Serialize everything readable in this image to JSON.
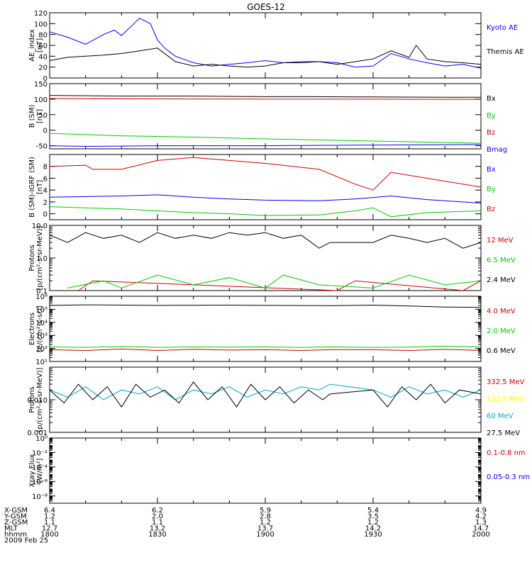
{
  "title": "GOES-12",
  "footer": {
    "rows": [
      {
        "label": "X-GSM",
        "values": [
          "6.4",
          "6.2",
          "5.9",
          "5.4",
          "4.9"
        ]
      },
      {
        "label": "Y-GSM",
        "values": [
          "1.2",
          "2.0",
          "2.8",
          "3.5",
          "4.2"
        ]
      },
      {
        "label": "Z-GSM",
        "values": [
          "1.1",
          "1.1",
          "1.2",
          "1.2",
          "1.3"
        ]
      },
      {
        "label": "MLT",
        "values": [
          "12.7",
          "13.2",
          "13.7",
          "14.2",
          "14.7"
        ]
      },
      {
        "label": "hhmm",
        "values": [
          "1800",
          "1830",
          "1900",
          "1930",
          "2000"
        ]
      }
    ],
    "date": "2009 Feb 25"
  },
  "colors": {
    "black": "#000000",
    "blue": "#0000ff",
    "red": "#cc0000",
    "green": "#00cc00",
    "yellow": "#ffff00",
    "cyan": "#00aacc"
  },
  "chart_data": [
    {
      "type": "line",
      "ylabel": [
        "AE_index",
        "[nT]"
      ],
      "ylim": [
        0,
        120
      ],
      "yticks": [
        "0",
        "20",
        "40",
        "60",
        "80",
        "100",
        "120"
      ],
      "series": [
        {
          "name": "Kyoto AE",
          "color": "#0000ff",
          "x": [
            1800,
            1805,
            1810,
            1815,
            1818,
            1820,
            1825,
            1828,
            1830,
            1832,
            1835,
            1840,
            1845,
            1850,
            1855,
            1900,
            1905,
            1910,
            1915,
            1920,
            1925,
            1930,
            1935,
            1940,
            1945,
            1950,
            1955,
            2000
          ],
          "y": [
            85,
            75,
            62,
            80,
            88,
            78,
            110,
            100,
            70,
            55,
            40,
            28,
            22,
            25,
            28,
            32,
            28,
            30,
            30,
            28,
            20,
            22,
            45,
            35,
            28,
            22,
            25,
            18
          ]
        },
        {
          "name": "Themis AE",
          "color": "#000000",
          "x": [
            1800,
            1805,
            1810,
            1815,
            1820,
            1825,
            1830,
            1835,
            1840,
            1845,
            1850,
            1855,
            1900,
            1905,
            1910,
            1915,
            1920,
            1925,
            1930,
            1935,
            1940,
            1942,
            1945,
            1950,
            1955,
            2000
          ],
          "y": [
            32,
            38,
            40,
            42,
            45,
            50,
            55,
            30,
            22,
            25,
            22,
            20,
            22,
            28,
            28,
            30,
            25,
            30,
            35,
            50,
            38,
            60,
            35,
            30,
            28,
            25
          ]
        }
      ]
    },
    {
      "type": "line",
      "ylabel": [
        "B (SM)",
        "[nT]"
      ],
      "ylim": [
        -60,
        150
      ],
      "yticks": [
        "-50",
        "0",
        "50",
        "100",
        "150"
      ],
      "series": [
        {
          "name": "Bx",
          "color": "#000000",
          "x": [
            1800,
            1820,
            1840,
            1850,
            1900,
            1911,
            1913,
            1930,
            1950,
            2000
          ],
          "y": [
            112,
            110,
            110,
            109,
            108,
            108,
            108,
            107,
            106,
            106
          ]
        },
        {
          "name": "By",
          "color": "#00cc00",
          "x": [
            1800,
            1820,
            1840,
            1900,
            1930,
            2000
          ],
          "y": [
            -10,
            -18,
            -22,
            -28,
            -35,
            -42
          ]
        },
        {
          "name": "Bz",
          "color": "#cc0000",
          "x": [
            1800,
            1830,
            1900,
            1930,
            2000
          ],
          "y": [
            102,
            101,
            100,
            100,
            99
          ]
        },
        {
          "name": "Bmag",
          "color": "#0000ff",
          "x": [
            1800,
            1810,
            1830,
            1900,
            1930,
            2000
          ],
          "y": [
            -50,
            -52,
            -50,
            -50,
            -48,
            -46
          ]
        }
      ]
    },
    {
      "type": "line",
      "ylabel": [
        "B (SM)-IGRF (SM)",
        "[nT]"
      ],
      "ylim": [
        -1,
        10
      ],
      "yticks": [
        "0",
        "2",
        "4",
        "6",
        "8"
      ],
      "series": [
        {
          "name": "Bx",
          "color": "#0000ff",
          "x": [
            1800,
            1810,
            1820,
            1830,
            1840,
            1850,
            1900,
            1915,
            1925,
            1935,
            1945,
            2000
          ],
          "y": [
            2.8,
            2.9,
            3.0,
            3.2,
            2.8,
            2.5,
            2.3,
            2.2,
            2.5,
            3.0,
            2.4,
            1.8
          ]
        },
        {
          "name": "By",
          "color": "#00cc00",
          "x": [
            1800,
            1810,
            1820,
            1830,
            1840,
            1850,
            1900,
            1915,
            1925,
            1930,
            1935,
            1945,
            2000
          ],
          "y": [
            1.2,
            1.0,
            0.8,
            0.5,
            0.2,
            0.0,
            -0.3,
            -0.2,
            0.5,
            1.0,
            -0.5,
            0.2,
            0.5
          ]
        },
        {
          "name": "Bz",
          "color": "#cc0000",
          "x": [
            1800,
            1810,
            1812,
            1820,
            1830,
            1840,
            1850,
            1900,
            1915,
            1925,
            1930,
            1935,
            1945,
            2000
          ],
          "y": [
            8.0,
            8.2,
            7.5,
            7.5,
            9.0,
            9.5,
            9.0,
            8.5,
            7.5,
            5.0,
            4.0,
            7.0,
            6.0,
            4.5
          ]
        }
      ]
    },
    {
      "type": "line",
      "scale": "log",
      "ylabel": [
        "Protons",
        "[p/(cm²-s-sr-MeV)]"
      ],
      "ylim": [
        0.1,
        10.0
      ],
      "yticks": [
        "0.1",
        "1.0",
        "10.0"
      ],
      "series": [
        {
          "name": "12 MeV",
          "color": "#cc0000",
          "x": [
            1808,
            1812,
            1920,
            1925,
            1955,
            2000
          ],
          "y": [
            0.1,
            0.2,
            0.1,
            0.2,
            0.1,
            0.2
          ]
        },
        {
          "name": "6.5 MeV",
          "color": "#00cc00",
          "x": [
            1805,
            1815,
            1820,
            1830,
            1840,
            1850,
            1900,
            1905,
            1915,
            1930,
            1940,
            1950,
            2000
          ],
          "y": [
            0.12,
            0.2,
            0.12,
            0.3,
            0.15,
            0.25,
            0.12,
            0.3,
            0.15,
            0.12,
            0.3,
            0.15,
            0.2
          ]
        },
        {
          "name": "2.4 MeV",
          "color": "#000000",
          "x": [
            1800,
            1805,
            1810,
            1815,
            1820,
            1825,
            1830,
            1835,
            1840,
            1845,
            1850,
            1855,
            1900,
            1905,
            1910,
            1915,
            1918,
            1930,
            1935,
            1940,
            1945,
            1950,
            1955,
            2000
          ],
          "y": [
            5,
            3,
            6,
            4,
            5,
            3,
            6,
            4,
            5,
            4,
            6,
            5,
            6,
            4,
            5,
            2,
            3,
            3,
            5,
            4,
            3,
            4,
            2,
            3
          ]
        }
      ]
    },
    {
      "type": "line",
      "scale": "log",
      "ylabel": [
        "Electrons",
        "[e/(cm²-s-sr)]"
      ],
      "ylim": [
        10,
        1000000
      ],
      "yticks": [
        "10¹",
        "10²",
        "10³",
        "10⁴",
        "10⁵",
        "10⁶"
      ],
      "series": [
        {
          "name": "4.0 MeV",
          "color": "#cc0000",
          "x": [
            1800,
            1810,
            1820,
            1830,
            1840,
            1850,
            1900,
            1910,
            1918,
            1930,
            1940,
            1950,
            2000
          ],
          "y": [
            80,
            70,
            90,
            70,
            85,
            75,
            80,
            70,
            80,
            80,
            70,
            85,
            70
          ]
        },
        {
          "name": "2.0 MeV",
          "color": "#00cc00",
          "x": [
            1800,
            1810,
            1820,
            1830,
            1840,
            1850,
            1900,
            1910,
            1918,
            1930,
            1940,
            1950,
            2000
          ],
          "y": [
            130,
            120,
            140,
            120,
            130,
            125,
            130,
            120,
            130,
            120,
            125,
            150,
            130
          ]
        },
        {
          "name": "0.6 MeV",
          "color": "#000000",
          "x": [
            1800,
            1810,
            1830,
            1850,
            1900,
            1918,
            1930,
            1940,
            1950,
            2000
          ],
          "y": [
            200000,
            220000,
            200000,
            210000,
            200000,
            190000,
            210000,
            180000,
            150000,
            140000
          ]
        }
      ]
    },
    {
      "type": "line",
      "scale": "log",
      "ylabel": [
        "Protons",
        "[p/(cm²-s-sr-MeV)]"
      ],
      "ylim": [
        0.001,
        0.1
      ],
      "yticks": [
        "0.001",
        "0.010"
      ],
      "series": [
        {
          "name": "332.5 MeV",
          "color": "#cc0000",
          "x": [],
          "y": []
        },
        {
          "name": "122.5 MeV",
          "color": "#ffff00",
          "x": [],
          "y": []
        },
        {
          "name": "60 MeV",
          "color": "#00aacc",
          "x": [
            1800,
            1805,
            1810,
            1815,
            1820,
            1825,
            1830,
            1835,
            1840,
            1845,
            1850,
            1855,
            1900,
            1905,
            1910,
            1915,
            1918,
            1930,
            1935,
            1940,
            1945,
            1950,
            1955,
            2000
          ],
          "y": [
            0.02,
            0.012,
            0.025,
            0.01,
            0.02,
            0.015,
            0.025,
            0.01,
            0.02,
            0.015,
            0.025,
            0.012,
            0.02,
            0.015,
            0.025,
            0.02,
            0.03,
            0.02,
            0.012,
            0.025,
            0.015,
            0.02,
            0.012,
            0.02
          ]
        },
        {
          "name": "27.5 MeV",
          "color": "#000000",
          "x": [
            1800,
            1804,
            1808,
            1812,
            1816,
            1820,
            1824,
            1828,
            1832,
            1836,
            1840,
            1844,
            1848,
            1852,
            1856,
            1900,
            1904,
            1908,
            1912,
            1916,
            1918,
            1930,
            1934,
            1938,
            1942,
            1946,
            1950,
            1954,
            2000
          ],
          "y": [
            0.02,
            0.008,
            0.03,
            0.01,
            0.025,
            0.006,
            0.03,
            0.012,
            0.02,
            0.008,
            0.035,
            0.01,
            0.025,
            0.006,
            0.03,
            0.01,
            0.025,
            0.008,
            0.02,
            0.01,
            0.015,
            0.02,
            0.006,
            0.025,
            0.01,
            0.03,
            0.008,
            0.02,
            0.015
          ]
        }
      ]
    },
    {
      "type": "line",
      "scale": "log",
      "ylabel": [
        "Xray Flux",
        "[W/m²]"
      ],
      "ylim": [
        1e-09,
        1
      ],
      "yticks": [
        "10⁻⁸",
        "10⁻⁶",
        "10⁻⁴",
        "10⁻²",
        "10⁰"
      ],
      "series": [
        {
          "name": "0.1-0.8 nm",
          "color": "#cc0000",
          "x": [],
          "y": []
        },
        {
          "name": "0.05-0.3 nm",
          "color": "#0000ff",
          "x": [],
          "y": []
        }
      ]
    }
  ]
}
